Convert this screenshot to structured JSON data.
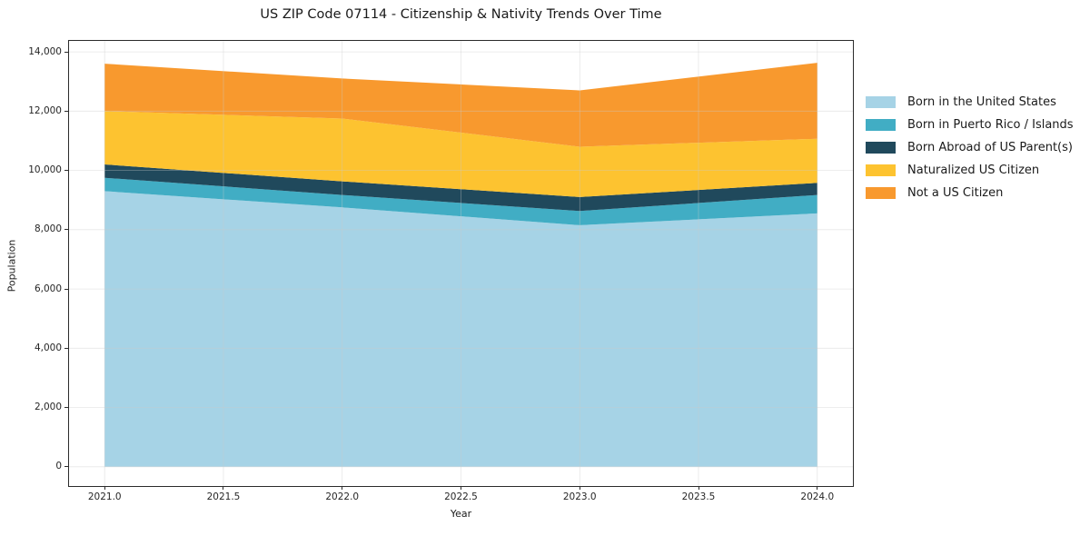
{
  "chart_data": {
    "type": "area",
    "stacked": true,
    "title": "US ZIP Code 07114 - Citizenship & Nativity Trends Over Time",
    "xlabel": "Year",
    "ylabel": "Population",
    "x": [
      2021,
      2022,
      2023,
      2024
    ],
    "series": [
      {
        "name": "Born in the United States",
        "color": "#a6d3e6",
        "values": [
          9300,
          8750,
          8150,
          8550
        ]
      },
      {
        "name": "Born in Puerto Rico / Islands",
        "color": "#41adc4",
        "values": [
          450,
          420,
          480,
          620
        ]
      },
      {
        "name": "Born Abroad of US Parent(s)",
        "color": "#20495c",
        "values": [
          450,
          460,
          470,
          410
        ]
      },
      {
        "name": "Naturalized US Citizen",
        "color": "#fdc330",
        "values": [
          1800,
          2120,
          1700,
          1490
        ]
      },
      {
        "name": "Not a US Citizen",
        "color": "#f8992e",
        "values": [
          1600,
          1350,
          1900,
          2560
        ]
      }
    ],
    "stacked_totals": [
      13600,
      13100,
      12700,
      13630
    ],
    "xlim": [
      2020.85,
      2024.15
    ],
    "ylim": [
      -650,
      14370
    ],
    "xticks": {
      "values": [
        2021.0,
        2021.5,
        2022.0,
        2022.5,
        2023.0,
        2023.5,
        2024.0
      ],
      "labels": [
        "2021.0",
        "2021.5",
        "2022.0",
        "2022.5",
        "2023.0",
        "2023.5",
        "2024.0"
      ]
    },
    "yticks": {
      "values": [
        0,
        2000,
        4000,
        6000,
        8000,
        10000,
        12000,
        14000
      ],
      "labels": [
        "0",
        "2,000",
        "4,000",
        "6,000",
        "8,000",
        "10,000",
        "12,000",
        "14,000"
      ]
    },
    "grid": true,
    "grid_color": "#c9c9c9",
    "spine_color": "#2b2b2b",
    "legend_position": "right-outside"
  }
}
